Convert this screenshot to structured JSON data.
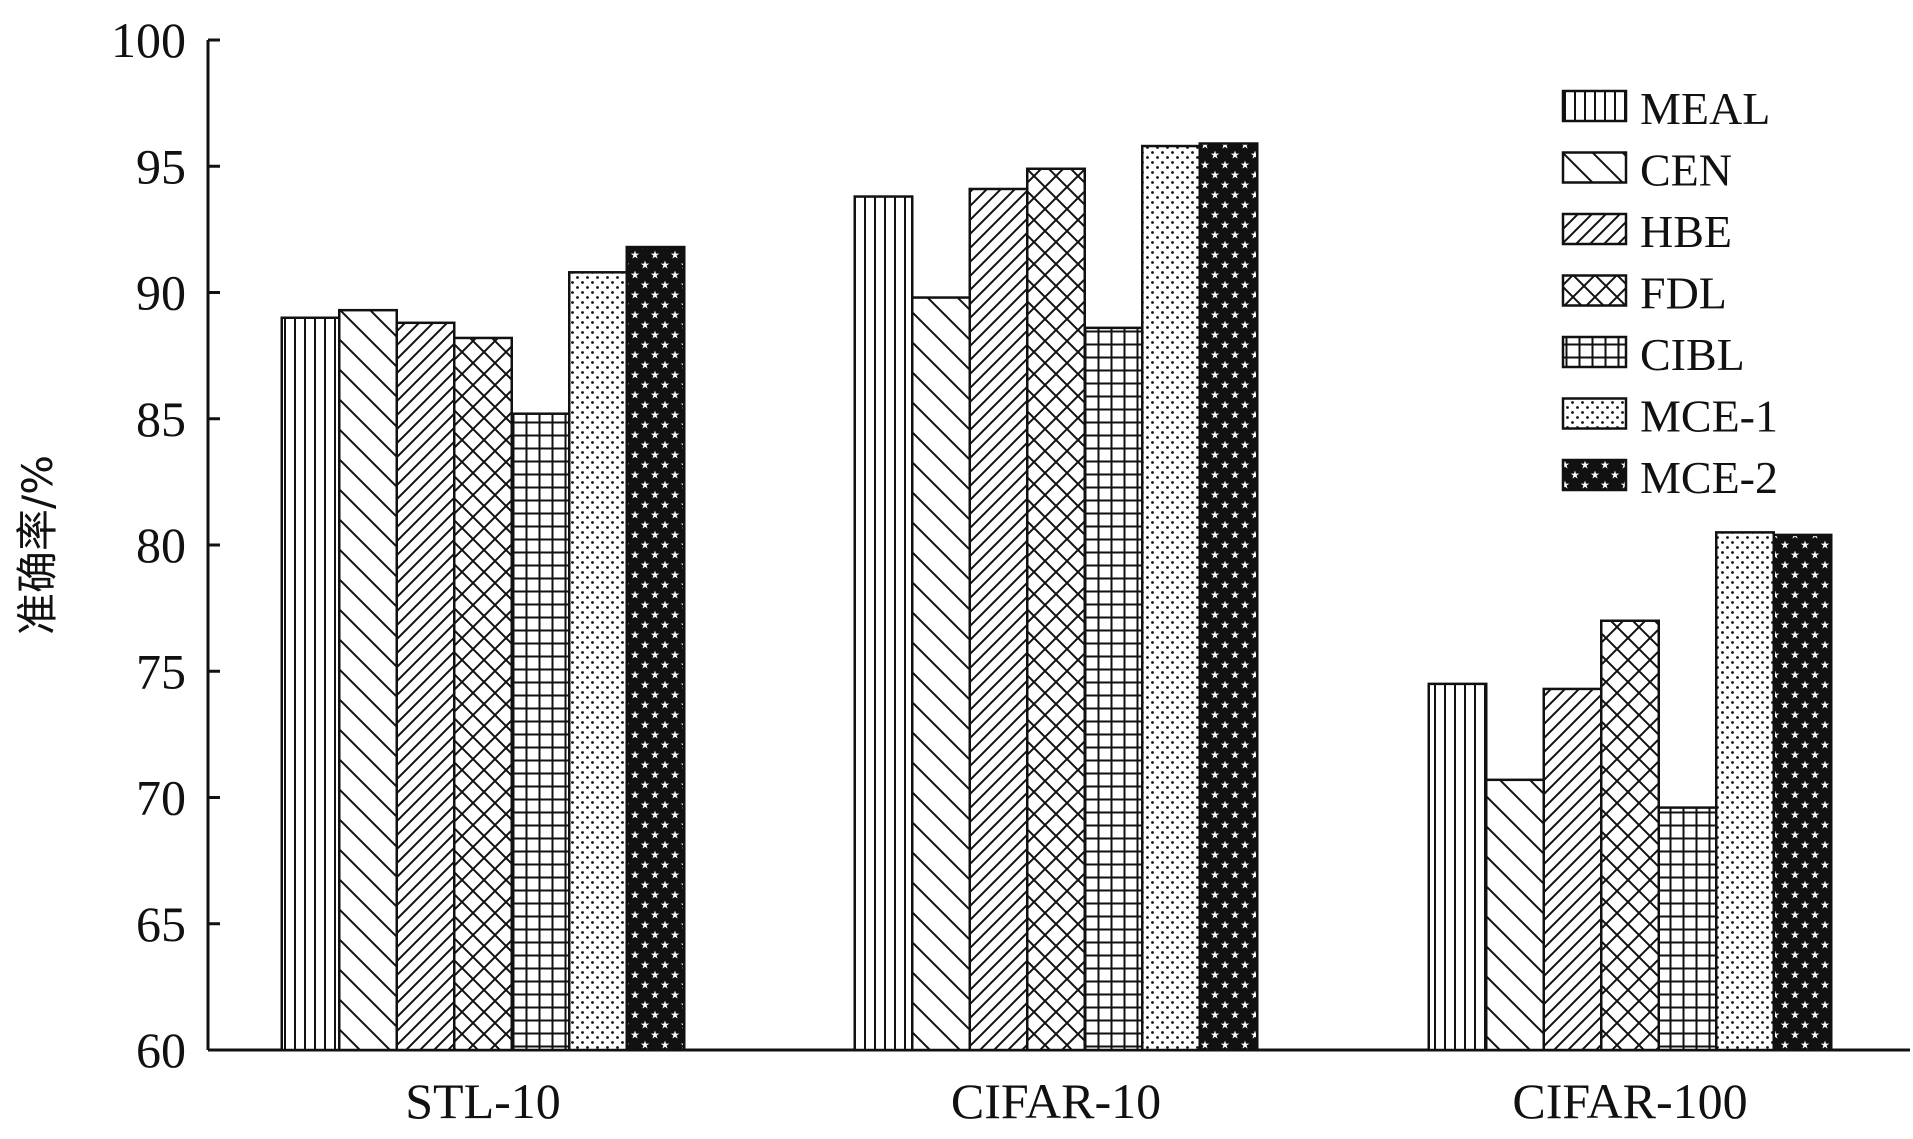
{
  "chart_data": {
    "type": "bar",
    "title": "",
    "xlabel": "",
    "ylabel": "准确率/%",
    "ylim": [
      60,
      100
    ],
    "yticks": [
      60,
      65,
      70,
      75,
      80,
      85,
      90,
      95,
      100
    ],
    "grid": false,
    "legend_position": "top-right",
    "categories": [
      "STL-10",
      "CIFAR-10",
      "CIFAR-100"
    ],
    "series": [
      {
        "name": "MEAL",
        "pattern": "vertical-lines",
        "values": [
          89.0,
          93.8,
          74.5
        ]
      },
      {
        "name": "CEN",
        "pattern": "backslash-diagonal",
        "values": [
          89.3,
          89.8,
          70.7
        ]
      },
      {
        "name": "HBE",
        "pattern": "slash-diagonal",
        "values": [
          88.8,
          94.1,
          74.3
        ]
      },
      {
        "name": "FDL",
        "pattern": "diagonal-crosshatch",
        "values": [
          88.2,
          94.9,
          77.0
        ]
      },
      {
        "name": "CIBL",
        "pattern": "grid",
        "values": [
          85.2,
          88.6,
          69.6
        ]
      },
      {
        "name": "MCE-1",
        "pattern": "dots",
        "values": [
          90.8,
          95.8,
          80.5
        ]
      },
      {
        "name": "MCE-2",
        "pattern": "stars",
        "values": [
          91.8,
          95.9,
          80.4
        ]
      }
    ],
    "colors": {
      "stroke": "#111111",
      "background": "#ffffff"
    }
  }
}
